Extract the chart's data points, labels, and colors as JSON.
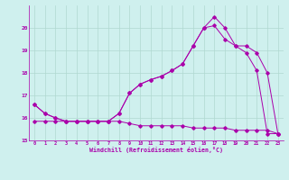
{
  "background_color": "#cff0ee",
  "grid_color": "#b0d8d0",
  "line_color": "#aa00aa",
  "xlim": [
    -0.5,
    23.5
  ],
  "ylim": [
    15,
    21
  ],
  "yticks": [
    15,
    16,
    17,
    18,
    19,
    20
  ],
  "xticks": [
    0,
    1,
    2,
    3,
    4,
    5,
    6,
    7,
    8,
    9,
    10,
    11,
    12,
    13,
    14,
    15,
    16,
    17,
    18,
    19,
    20,
    21,
    22,
    23
  ],
  "xlabel": "Windchill (Refroidissement éolien,°C)",
  "line1_x": [
    0,
    1,
    2,
    3,
    4,
    5,
    6,
    7,
    8,
    9,
    10,
    11,
    12,
    13,
    14,
    15,
    16,
    17,
    18,
    19,
    20,
    21,
    22,
    23
  ],
  "line1_y": [
    16.6,
    16.2,
    16.0,
    15.85,
    15.85,
    15.85,
    15.85,
    15.85,
    16.2,
    17.1,
    17.5,
    17.7,
    17.85,
    18.1,
    18.4,
    19.2,
    20.0,
    20.5,
    20.0,
    19.2,
    19.2,
    18.9,
    18.0,
    15.3
  ],
  "line2_x": [
    0,
    1,
    2,
    3,
    4,
    5,
    6,
    7,
    8,
    9,
    10,
    11,
    12,
    13,
    14,
    15,
    16,
    17,
    18,
    19,
    20,
    21,
    22,
    23
  ],
  "line2_y": [
    16.6,
    16.2,
    16.0,
    15.85,
    15.85,
    15.85,
    15.85,
    15.85,
    16.2,
    17.1,
    17.5,
    17.7,
    17.85,
    18.1,
    18.4,
    19.2,
    20.0,
    20.1,
    19.5,
    19.2,
    18.9,
    18.1,
    15.3,
    15.3
  ],
  "line3_x": [
    0,
    1,
    2,
    3,
    4,
    5,
    6,
    7,
    8,
    9,
    10,
    11,
    12,
    13,
    14,
    15,
    16,
    17,
    18,
    19,
    20,
    21,
    22,
    23
  ],
  "line3_y": [
    15.85,
    15.85,
    15.85,
    15.85,
    15.85,
    15.85,
    15.85,
    15.85,
    15.85,
    15.75,
    15.65,
    15.65,
    15.65,
    15.65,
    15.65,
    15.55,
    15.55,
    15.55,
    15.55,
    15.45,
    15.45,
    15.45,
    15.45,
    15.3
  ],
  "figwidth": 3.2,
  "figheight": 2.0,
  "dpi": 100
}
